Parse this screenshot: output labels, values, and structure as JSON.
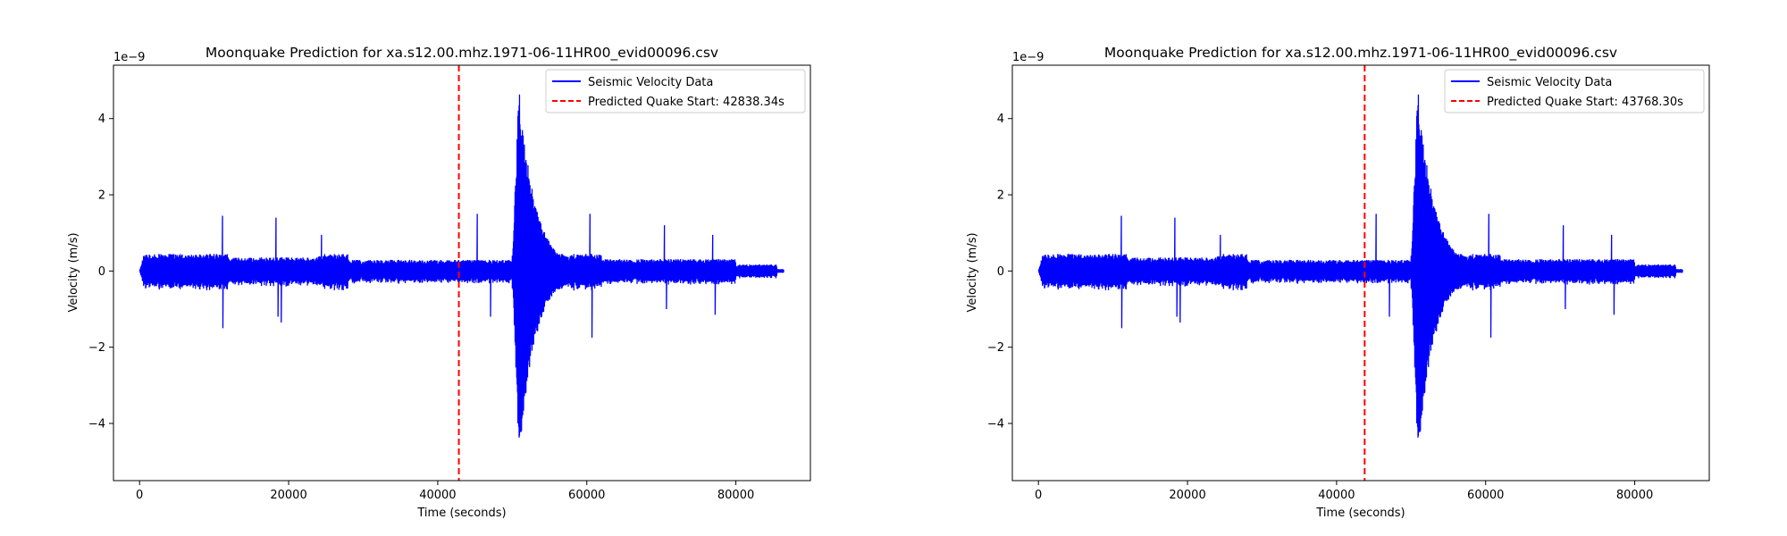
{
  "chart_data": [
    {
      "type": "line",
      "title": "Moonquake Prediction for xa.s12.00.mhz.1971-06-11HR00_evid00096.csv",
      "xlabel": "Time (seconds)",
      "ylabel": "Velocity (m/s)",
      "y_offset_label": "1e−9",
      "xlim": [
        -3500,
        90000
      ],
      "ylim": [
        -5.5,
        5.4
      ],
      "xticks": [
        0,
        20000,
        40000,
        60000,
        80000
      ],
      "xtick_labels": [
        "0",
        "20000",
        "40000",
        "60000",
        "80000"
      ],
      "yticks": [
        -4,
        -2,
        0,
        2,
        4
      ],
      "ytick_labels": [
        "−4",
        "−2",
        "0",
        "2",
        "4"
      ],
      "grid": false,
      "legend_position": "upper right",
      "series": [
        {
          "name": "Seismic Velocity Data",
          "color": "#0000ff",
          "style": "solid",
          "x_range": [
            0,
            86400
          ],
          "noise_amplitude": 0.45,
          "spikes": [
            {
              "x": 11100,
              "y": 1.45
            },
            {
              "x": 11200,
              "y": -1.5
            },
            {
              "x": 18300,
              "y": 1.4
            },
            {
              "x": 18600,
              "y": -1.2
            },
            {
              "x": 19000,
              "y": -1.35
            },
            {
              "x": 24400,
              "y": 0.95
            },
            {
              "x": 45300,
              "y": 1.5
            },
            {
              "x": 47100,
              "y": -1.2
            },
            {
              "x": 60400,
              "y": 1.5
            },
            {
              "x": 60700,
              "y": -1.75
            },
            {
              "x": 70400,
              "y": 1.2
            },
            {
              "x": 70700,
              "y": -1.0
            },
            {
              "x": 76900,
              "y": 0.95
            },
            {
              "x": 77200,
              "y": -1.15
            }
          ],
          "event": {
            "start": 50000,
            "peak": 50900,
            "peak_value": 4.9,
            "min_value": -4.95,
            "decay_end": 62000
          }
        },
        {
          "name": "Predicted Quake Start: 42838.34s",
          "color": "#ff0000",
          "style": "dashed",
          "vline_x": 42838.34
        }
      ]
    },
    {
      "type": "line",
      "title": "Moonquake Prediction for xa.s12.00.mhz.1971-06-11HR00_evid00096.csv",
      "xlabel": "Time (seconds)",
      "ylabel": "Velocity (m/s)",
      "y_offset_label": "1e−9",
      "xlim": [
        -3500,
        90000
      ],
      "ylim": [
        -5.5,
        5.4
      ],
      "xticks": [
        0,
        20000,
        40000,
        60000,
        80000
      ],
      "xtick_labels": [
        "0",
        "20000",
        "40000",
        "60000",
        "80000"
      ],
      "yticks": [
        -4,
        -2,
        0,
        2,
        4
      ],
      "ytick_labels": [
        "−4",
        "−2",
        "0",
        "2",
        "4"
      ],
      "grid": false,
      "legend_position": "upper right",
      "series": [
        {
          "name": "Seismic Velocity Data",
          "color": "#0000ff",
          "style": "solid",
          "x_range": [
            0,
            86400
          ],
          "noise_amplitude": 0.45,
          "spikes": [
            {
              "x": 11100,
              "y": 1.45
            },
            {
              "x": 11200,
              "y": -1.5
            },
            {
              "x": 18300,
              "y": 1.4
            },
            {
              "x": 18600,
              "y": -1.2
            },
            {
              "x": 19000,
              "y": -1.35
            },
            {
              "x": 24400,
              "y": 0.95
            },
            {
              "x": 45300,
              "y": 1.5
            },
            {
              "x": 47100,
              "y": -1.2
            },
            {
              "x": 60400,
              "y": 1.5
            },
            {
              "x": 60700,
              "y": -1.75
            },
            {
              "x": 70400,
              "y": 1.2
            },
            {
              "x": 70700,
              "y": -1.0
            },
            {
              "x": 76900,
              "y": 0.95
            },
            {
              "x": 77200,
              "y": -1.15
            }
          ],
          "event": {
            "start": 50000,
            "peak": 50900,
            "peak_value": 4.9,
            "min_value": -4.95,
            "decay_end": 62000
          }
        },
        {
          "name": "Predicted Quake Start: 43768.30s",
          "color": "#ff0000",
          "style": "dashed",
          "vline_x": 43768.3
        }
      ]
    }
  ]
}
